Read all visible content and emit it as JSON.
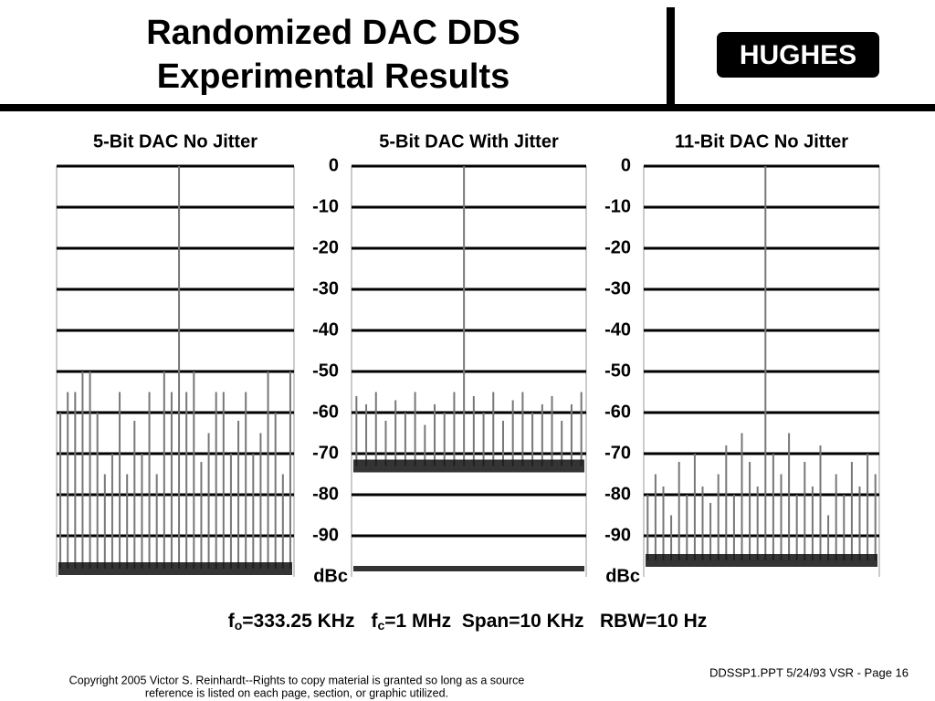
{
  "header": {
    "title": [
      "Randomized DAC DDS",
      "Experimental Results"
    ],
    "logo": "HUGHES"
  },
  "chart_data": [
    {
      "type": "spectrum",
      "title": "5-Bit DAC No Jitter",
      "ylim": [
        -100,
        0
      ],
      "noise_floor": -98,
      "values": [
        -60,
        -55,
        -55,
        -50,
        -50,
        -60,
        -75,
        -70,
        -55,
        -75,
        -62,
        -70,
        -55,
        -75,
        -50,
        -55,
        0,
        -55,
        -50,
        -72,
        -65,
        -55,
        -55,
        -70,
        -62,
        -55,
        -70,
        -65,
        -50,
        -60,
        -75,
        -50
      ]
    },
    {
      "type": "spectrum",
      "title": "5-Bit DAC With Jitter",
      "ylim": [
        -100,
        0
      ],
      "noise_floor": -73,
      "lower_trace": -98,
      "yticks": [
        0,
        -10,
        -20,
        -30,
        -40,
        -50,
        -60,
        -70,
        -80,
        -90
      ],
      "y_label": "dBc",
      "values": [
        -56,
        -58,
        -55,
        -62,
        -57,
        -60,
        -55,
        -63,
        -58,
        -60,
        -55,
        0,
        -56,
        -60,
        -55,
        -62,
        -57,
        -55,
        -60,
        -58,
        -56,
        -62,
        -58,
        -55
      ]
    },
    {
      "type": "spectrum",
      "title": "11-Bit DAC No Jitter",
      "ylim": [
        -100,
        0
      ],
      "noise_floor": -96,
      "yticks": [
        0,
        -10,
        -20,
        -30,
        -40,
        -50,
        -60,
        -70,
        -80,
        -90
      ],
      "y_label": "dBc",
      "values": [
        -80,
        -75,
        -78,
        -85,
        -72,
        -80,
        -70,
        -78,
        -82,
        -75,
        -68,
        -80,
        -65,
        -72,
        -78,
        0,
        -70,
        -75,
        -65,
        -80,
        -72,
        -78,
        -68,
        -85,
        -75,
        -80,
        -72,
        -78,
        -70,
        -75
      ]
    }
  ],
  "caption": {
    "parts": [
      "f",
      "o",
      "=333.25 KHz",
      "f",
      "c",
      "=1 MHz  Span=10 KHz   RBW=10 Hz"
    ]
  },
  "footer": {
    "copyright": [
      "Copyright 2005 Victor S. Reinhardt--Rights to copy material is granted so long as a source",
      "reference is listed on each page, section, or graphic utilized."
    ],
    "page": "DDSSP1.PPT 5/24/93 VSR - Page 16"
  }
}
